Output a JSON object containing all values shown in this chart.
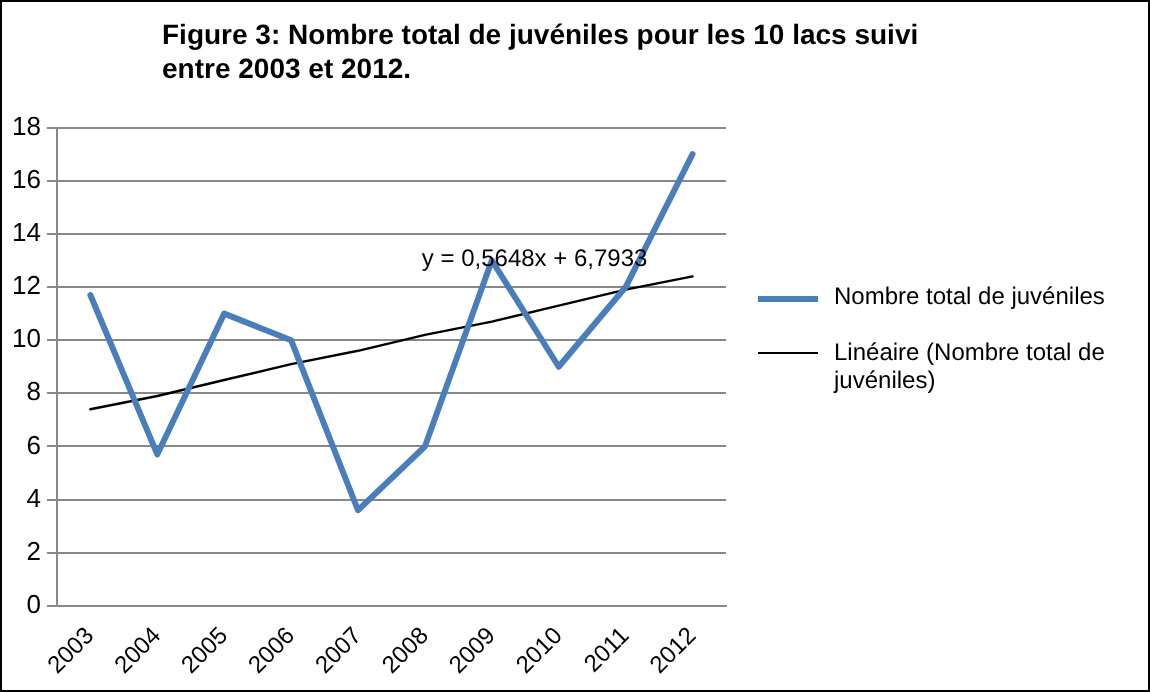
{
  "chart_data": {
    "type": "line",
    "title": "Figure 3: Nombre total de juvéniles pour les 10 lacs suivi entre 2003 et 2012.",
    "categories": [
      "2003",
      "2004",
      "2005",
      "2006",
      "2007",
      "2008",
      "2009",
      "2010",
      "2011",
      "2012"
    ],
    "series": [
      {
        "name": "Nombre total de juvéniles",
        "color": "#4a7ebb",
        "values": [
          11.7,
          5.7,
          11,
          10,
          3.6,
          6,
          13,
          9,
          12,
          17
        ]
      },
      {
        "name": "Linéaire (Nombre total de juvéniles)",
        "color": "#000000",
        "values": [
          7.4,
          7.9,
          8.5,
          9.1,
          9.6,
          10.2,
          10.7,
          11.3,
          11.9,
          12.4
        ]
      }
    ],
    "annotations": [
      {
        "text": "y = 0,5648x + 6,7933",
        "x": "2009",
        "y": 12.5
      }
    ],
    "ylim": [
      0,
      18
    ],
    "yticks": [
      0,
      2,
      4,
      6,
      8,
      10,
      12,
      14,
      16,
      18
    ],
    "grid": "y",
    "legend": "right",
    "marker": "none",
    "line_style": "solid"
  }
}
